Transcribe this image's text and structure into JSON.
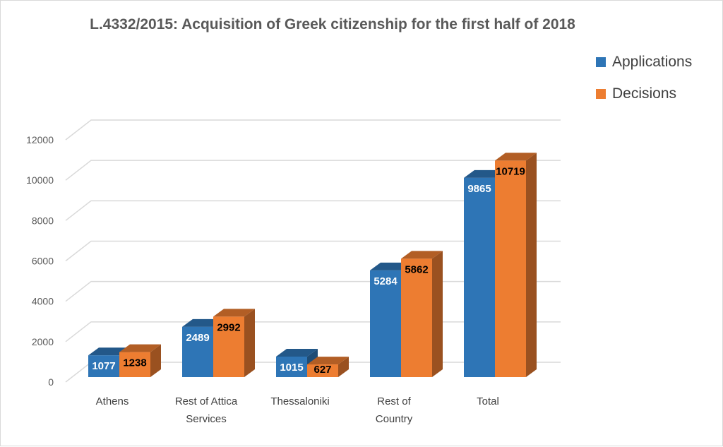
{
  "chart_data": {
    "type": "bar",
    "title": "L.4332/2015: Acquisition of Greek citizenship for the first half of 2018",
    "categories": [
      [
        "Athens"
      ],
      [
        "Rest of Attica",
        "Services"
      ],
      [
        "Thessaloniki"
      ],
      [
        "Rest of",
        "Country"
      ],
      [
        "Total"
      ]
    ],
    "series": [
      {
        "name": "Applications",
        "color": "#2e75b6",
        "values": [
          1077,
          2489,
          1015,
          5284,
          9865
        ]
      },
      {
        "name": "Decisions",
        "color": "#ed7d31",
        "values": [
          1238,
          2992,
          627,
          5862,
          10719
        ]
      }
    ],
    "ylim": [
      0,
      12000
    ],
    "yticks": [
      0,
      2000,
      4000,
      6000,
      8000,
      10000,
      12000
    ],
    "grid": true,
    "legend": "top-right",
    "style": "3d-clustered-column"
  }
}
